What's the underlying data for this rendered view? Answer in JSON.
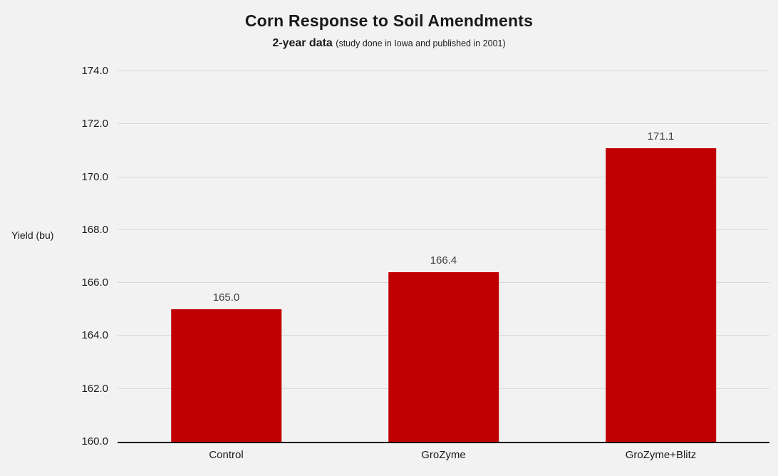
{
  "chart_data": {
    "type": "bar",
    "title": "Corn Response to Soil Amendments",
    "subtitle_bold": "2-year data",
    "subtitle_note": "(study done in Iowa and published in 2001)",
    "ylabel": "Yield (bu)",
    "categories": [
      "Control",
      "GroZyme",
      "GroZyme+Blitz"
    ],
    "values": [
      165.0,
      166.4,
      171.1
    ],
    "value_labels": [
      "165.0",
      "166.4",
      "171.1"
    ],
    "ylim": [
      160,
      174
    ],
    "yticks": [
      160,
      162,
      164,
      166,
      168,
      170,
      172,
      174
    ],
    "ytick_labels": [
      "160.0",
      "162.0",
      "164.0",
      "166.0",
      "168.0",
      "170.0",
      "172.0",
      "174.0"
    ],
    "bar_color": "#c00000",
    "grid": true,
    "legend": "none",
    "background_color": "#f2f2f2",
    "gridline_color": "#d9d9d9"
  }
}
